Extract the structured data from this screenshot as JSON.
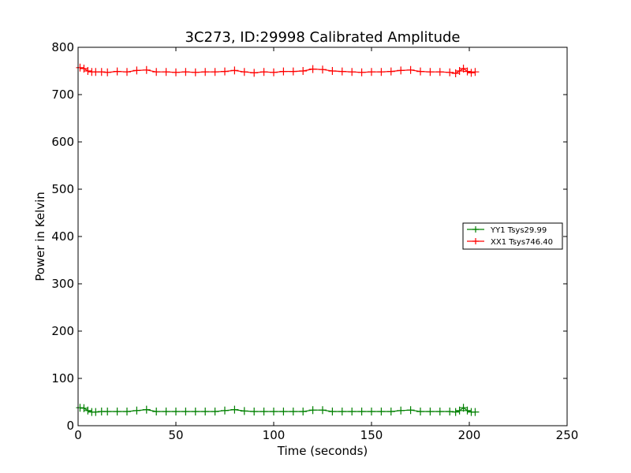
{
  "chart_data": {
    "type": "line",
    "title": "3C273, ID:29998 Calibrated Amplitude",
    "xlabel": "Time (seconds)",
    "ylabel": "Power in Kelvin",
    "xlim": [
      0,
      250
    ],
    "ylim": [
      0,
      800
    ],
    "xticks": [
      0,
      50,
      100,
      150,
      200,
      250
    ],
    "yticks": [
      0,
      100,
      200,
      300,
      400,
      500,
      600,
      700,
      800
    ],
    "grid": false,
    "legend_position": "center-right",
    "series": [
      {
        "name": "YY1 Tsys29.99",
        "color": "#008000",
        "marker": "+",
        "x": [
          1,
          3,
          5,
          7,
          9,
          12,
          15,
          20,
          25,
          30,
          35,
          40,
          45,
          50,
          55,
          60,
          65,
          70,
          75,
          80,
          85,
          90,
          95,
          100,
          105,
          110,
          115,
          120,
          125,
          130,
          135,
          140,
          145,
          150,
          155,
          160,
          165,
          170,
          175,
          180,
          185,
          190,
          193,
          195,
          197,
          199,
          201,
          203
        ],
        "y": [
          38,
          37,
          32,
          29,
          29,
          30,
          30,
          30,
          30,
          32,
          34,
          30,
          30,
          30,
          30,
          30,
          30,
          30,
          32,
          34,
          31,
          30,
          30,
          30,
          30,
          30,
          30,
          33,
          33,
          30,
          30,
          30,
          30,
          30,
          30,
          30,
          32,
          33,
          30,
          30,
          30,
          30,
          29,
          32,
          38,
          32,
          29,
          29
        ]
      },
      {
        "name": "XX1 Tsys746.40",
        "color": "#ff0000",
        "marker": "+",
        "x": [
          1,
          3,
          5,
          7,
          9,
          12,
          15,
          20,
          25,
          30,
          35,
          40,
          45,
          50,
          55,
          60,
          65,
          70,
          75,
          80,
          85,
          90,
          95,
          100,
          105,
          110,
          115,
          120,
          125,
          130,
          135,
          140,
          145,
          150,
          155,
          160,
          165,
          170,
          175,
          180,
          185,
          190,
          193,
          195,
          197,
          199,
          201,
          203
        ],
        "y": [
          757,
          755,
          750,
          748,
          748,
          748,
          747,
          749,
          748,
          751,
          752,
          748,
          748,
          747,
          748,
          747,
          748,
          748,
          749,
          751,
          748,
          746,
          748,
          747,
          749,
          749,
          750,
          754,
          753,
          750,
          749,
          748,
          747,
          748,
          748,
          749,
          751,
          752,
          749,
          748,
          748,
          747,
          745,
          750,
          755,
          749,
          746,
          748
        ]
      }
    ]
  }
}
